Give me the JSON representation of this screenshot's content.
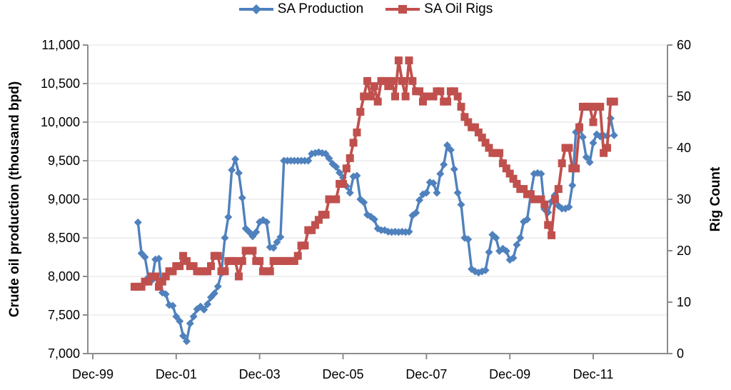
{
  "chart_data": {
    "type": "line",
    "title": "",
    "legend_position": "top",
    "grid": "horizontal",
    "x_axis": {
      "start_label": "Dec-99",
      "tick_labels": [
        "Dec-99",
        "Dec-01",
        "Dec-03",
        "Dec-05",
        "Dec-07",
        "Dec-09",
        "Dec-11"
      ],
      "months_per_tick": 24,
      "total_months_shown": 165
    },
    "y_left": {
      "label": "Crude oil production (thousand bpd)",
      "min": 7000,
      "max": 11000,
      "step": 500,
      "tick_labels": [
        "7,000",
        "7,500",
        "8,000",
        "8,500",
        "9,000",
        "9,500",
        "10,000",
        "10,500",
        "11,000"
      ]
    },
    "y_right": {
      "label": "Rig Count",
      "min": 0,
      "max": 60,
      "step": 10,
      "tick_labels": [
        "0",
        "10",
        "20",
        "30",
        "40",
        "50",
        "60"
      ]
    },
    "series": [
      {
        "name": "SA Production",
        "axis": "left",
        "color": "#4F81BD",
        "marker": "diamond",
        "start_month_index": 13,
        "start_label": "Jan-01",
        "values": [
          8700,
          8300,
          8250,
          7990,
          7950,
          8220,
          8230,
          7790,
          7770,
          7630,
          7620,
          7480,
          7420,
          7230,
          7160,
          7390,
          7480,
          7575,
          7610,
          7570,
          7640,
          7730,
          7780,
          7870,
          8040,
          8500,
          8770,
          9380,
          9520,
          9340,
          9020,
          8620,
          8575,
          8520,
          8575,
          8705,
          8730,
          8705,
          8380,
          8370,
          8445,
          8510,
          9500,
          9500,
          9500,
          9500,
          9500,
          9500,
          9500,
          9500,
          9590,
          9600,
          9610,
          9600,
          9590,
          9530,
          9460,
          9420,
          9345,
          9280,
          9170,
          9085,
          9295,
          9305,
          9000,
          8960,
          8800,
          8775,
          8740,
          8620,
          8600,
          8600,
          8580,
          8575,
          8580,
          8575,
          8580,
          8575,
          8580,
          8790,
          8825,
          8990,
          9065,
          9085,
          9220,
          9210,
          9085,
          9330,
          9450,
          9700,
          9640,
          9390,
          9085,
          8930,
          8500,
          8480,
          8095,
          8065,
          8050,
          8065,
          8080,
          8315,
          8540,
          8500,
          8330,
          8360,
          8330,
          8215,
          8240,
          8410,
          8500,
          8710,
          8740,
          9055,
          9330,
          9340,
          9330,
          8870,
          8830,
          8970,
          9055,
          8915,
          8880,
          8880,
          8900,
          9180,
          9870,
          9960,
          9806,
          9546,
          9480,
          9730,
          9843,
          9815,
          9824,
          9820,
          10050,
          9830
        ]
      },
      {
        "name": "SA Oil Rigs",
        "axis": "right",
        "color": "#C0504D",
        "marker": "square",
        "start_month_index": 12,
        "start_label": "Dec-00",
        "values": [
          13,
          13,
          13,
          14,
          14,
          15,
          15,
          13,
          14,
          15,
          16,
          16,
          17,
          17,
          19,
          18,
          17,
          17,
          16,
          16,
          16,
          16,
          17,
          19,
          19,
          16,
          16,
          18,
          18,
          18,
          15,
          18,
          20,
          20,
          20,
          18,
          18,
          16,
          16,
          16,
          18,
          18,
          18,
          18,
          18,
          18,
          18,
          19,
          21,
          21,
          24,
          24,
          25,
          26,
          27,
          27,
          30,
          30,
          30,
          33,
          33,
          36,
          38,
          41,
          43,
          47,
          50,
          53,
          50,
          52,
          49,
          53,
          53,
          52,
          53,
          50,
          57,
          53,
          50,
          57,
          53,
          51,
          51,
          49,
          50,
          50,
          50,
          51,
          51,
          49,
          49,
          51,
          51,
          50,
          48,
          46,
          45,
          44,
          44,
          43,
          42,
          41,
          40,
          39,
          39,
          39,
          37,
          36,
          35,
          34,
          33,
          32,
          32,
          31,
          31,
          30,
          30,
          30,
          29,
          25,
          23,
          30,
          32,
          37,
          40,
          40,
          36,
          36,
          44,
          48,
          48,
          48,
          45,
          48,
          48,
          39,
          40,
          49,
          49
        ]
      }
    ],
    "colors": {
      "production_blue": "#4F81BD",
      "rigs_red": "#C0504D",
      "gridline": "#F0F0F0",
      "axis_line": "#8C8C8C"
    }
  }
}
